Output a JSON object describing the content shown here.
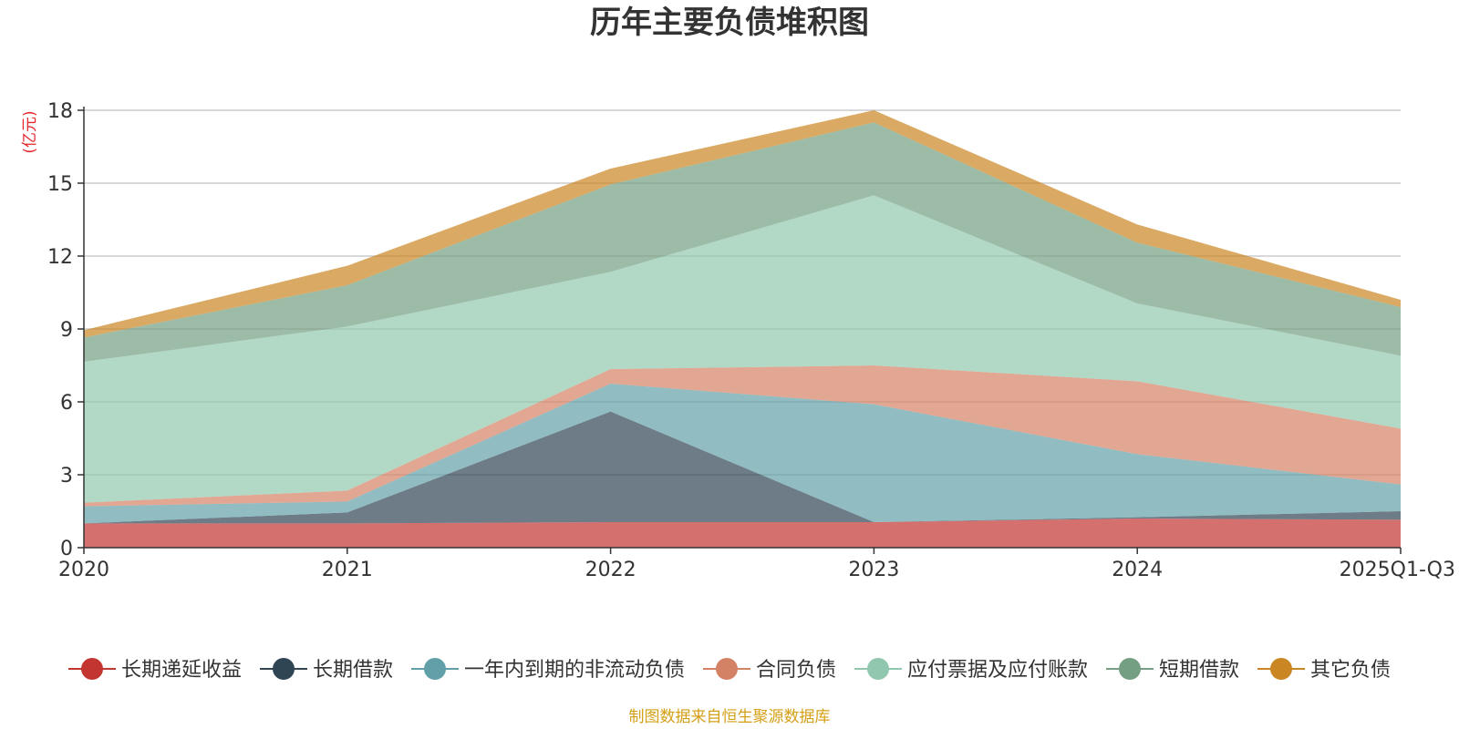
{
  "chart_data": {
    "type": "area",
    "stacked": true,
    "title": "历年主要负债堆积图",
    "unit": "(亿元)",
    "source": "制图数据来自恒生聚源数据库",
    "categories": [
      "2020",
      "2021",
      "2022",
      "2023",
      "2024",
      "2025Q1-Q3"
    ],
    "yticks": [
      "0",
      "3",
      "6",
      "9",
      "12",
      "15",
      "18"
    ],
    "ylim": [
      0,
      18
    ],
    "grid": true,
    "legend_position": "bottom",
    "series": [
      {
        "name": "长期递延收益",
        "color": "#c23531",
        "values": [
          1.0,
          1.0,
          1.05,
          1.05,
          1.2,
          1.15
        ]
      },
      {
        "name": "长期借款",
        "color": "#2f4554",
        "values": [
          0.0,
          0.45,
          4.55,
          0.0,
          0.05,
          0.35
        ]
      },
      {
        "name": "一年内到期的非流动负债",
        "color": "#61a0a8",
        "values": [
          0.7,
          0.45,
          1.15,
          4.85,
          2.6,
          1.1
        ]
      },
      {
        "name": "合同负债",
        "color": "#d48265",
        "values": [
          0.15,
          0.45,
          0.6,
          1.6,
          3.0,
          2.3
        ]
      },
      {
        "name": "应付票据及应付账款",
        "color": "#91c7ae",
        "values": [
          5.8,
          6.75,
          4.0,
          7.0,
          3.2,
          3.0
        ]
      },
      {
        "name": "短期借款",
        "color": "#749f83",
        "values": [
          1.0,
          1.7,
          3.6,
          3.0,
          2.5,
          2.0
        ]
      },
      {
        "name": "其它负债",
        "color": "#ca8622",
        "values": [
          0.3,
          0.8,
          0.65,
          0.5,
          0.75,
          0.3
        ]
      }
    ]
  }
}
